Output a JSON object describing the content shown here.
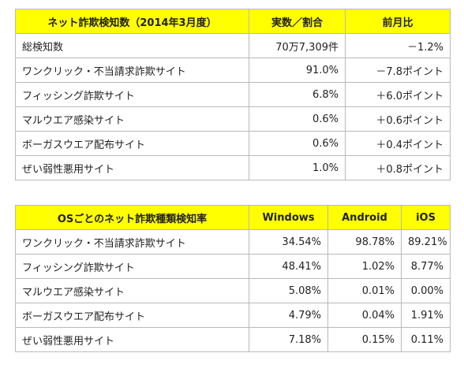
{
  "colors": {
    "header_background": "#ffff00",
    "border": "#b9b9b9",
    "text": "#222222"
  },
  "table1": {
    "headers": [
      "ネット詐欺検知数（2014年3月度）",
      "実数／割合",
      "前月比"
    ],
    "rows": [
      [
        "総検知数",
        "70万7,309件",
        "－1.2%"
      ],
      [
        "ワンクリック・不当請求詐欺サイト",
        "91.0%",
        "－7.8ポイント"
      ],
      [
        "フィッシング詐欺サイト",
        "6.8%",
        "＋6.0ポイント"
      ],
      [
        "マルウエア感染サイト",
        "0.6%",
        "＋0.6ポイント"
      ],
      [
        "ボーガスウエア配布サイト",
        "0.6%",
        "＋0.4ポイント"
      ],
      [
        "ぜい弱性悪用サイト",
        "1.0%",
        "＋0.8ポイント"
      ]
    ]
  },
  "table2": {
    "headers": [
      "OSごとのネット詐欺種類検知率",
      "Windows",
      "Android",
      "iOS"
    ],
    "rows": [
      [
        "ワンクリック・不当請求詐欺サイト",
        "34.54%",
        "98.78%",
        "89.21%"
      ],
      [
        "フィッシング詐欺サイト",
        "48.41%",
        "1.02%",
        "8.77%"
      ],
      [
        "マルウエア感染サイト",
        "5.08%",
        "0.01%",
        "0.00%"
      ],
      [
        "ボーガスウエア配布サイト",
        "4.79%",
        "0.04%",
        "1.91%"
      ],
      [
        "ぜい弱性悪用サイト",
        "7.18%",
        "0.15%",
        "0.11%"
      ]
    ]
  }
}
